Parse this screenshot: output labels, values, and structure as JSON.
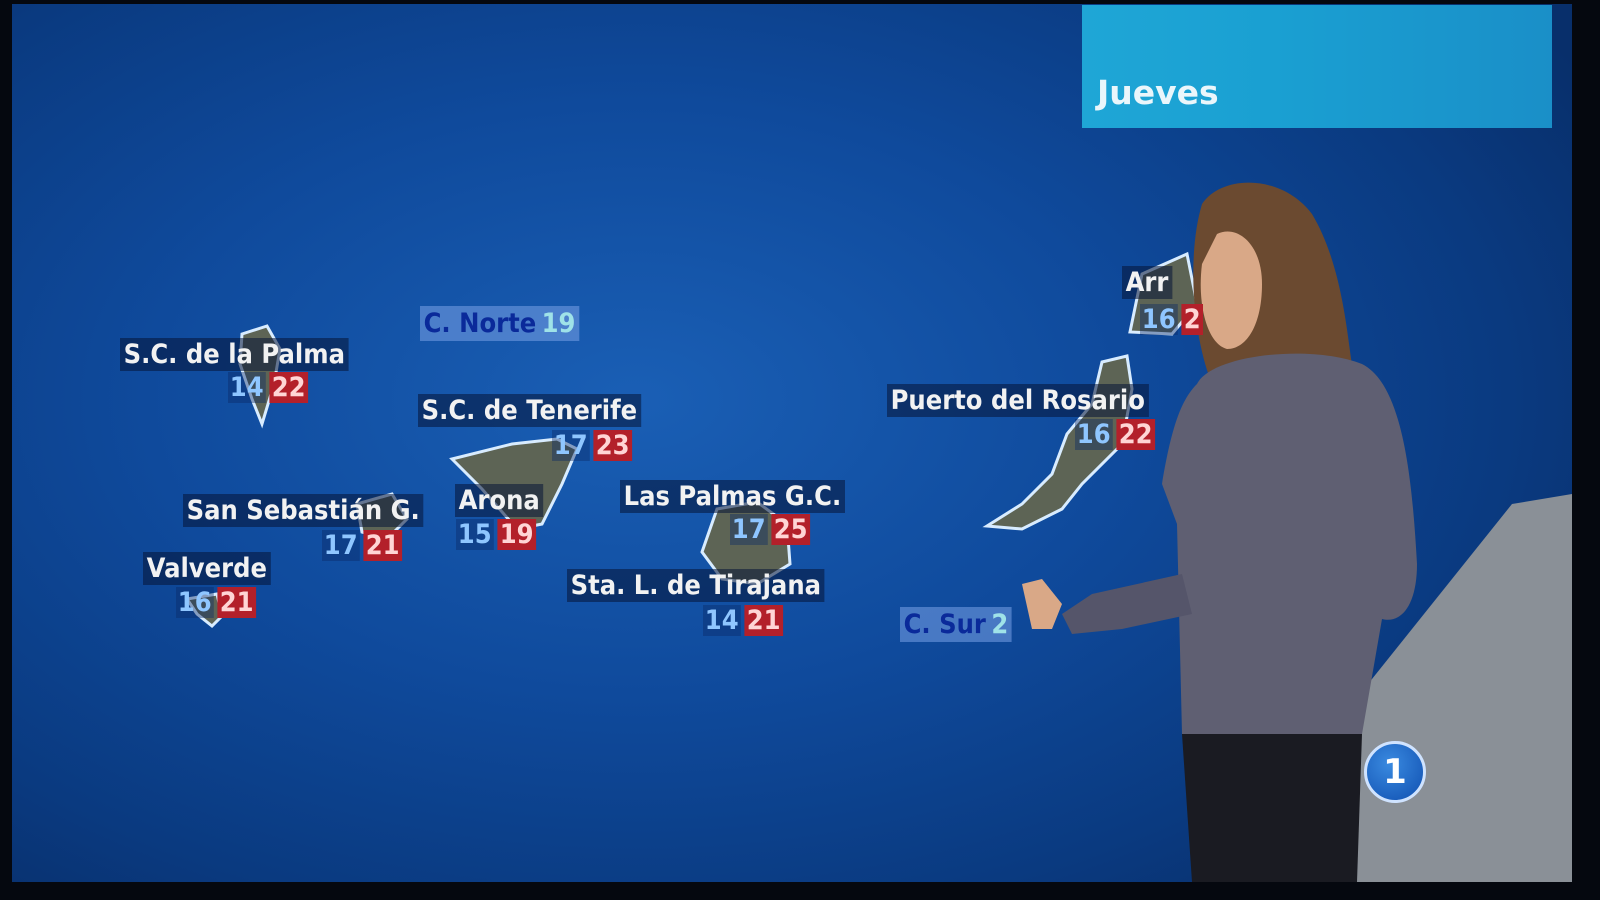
{
  "header": {
    "day": "Jueves"
  },
  "cities": [
    {
      "name": "S.C. de la Palma",
      "min": "14",
      "max": "22"
    },
    {
      "name": "S.C. de Tenerife",
      "min": "17",
      "max": "23"
    },
    {
      "name": "San Sebastián G.",
      "min": "17",
      "max": "21"
    },
    {
      "name": "Arona",
      "min": "15",
      "max": "19"
    },
    {
      "name": "Las Palmas G.C.",
      "min": "17",
      "max": "25"
    },
    {
      "name": "Valverde",
      "min": "16",
      "max": "21"
    },
    {
      "name": "Sta. L. de Tirajana",
      "min": "14",
      "max": "21"
    },
    {
      "name": "Puerto del Rosario",
      "min": "16",
      "max": "22"
    },
    {
      "name": "Arr",
      "min": "16",
      "max": "2"
    }
  ],
  "sea_zones": [
    {
      "name": "C. Norte",
      "value": "19"
    },
    {
      "name": "C. Sur",
      "value": "2"
    }
  ],
  "channel_logo": "1",
  "colors": {
    "sea": "#0f4a9c",
    "min_temp": "#8fc6ff",
    "max_temp_bg": "#b3202a",
    "day_banner": "#1fa6d6"
  }
}
